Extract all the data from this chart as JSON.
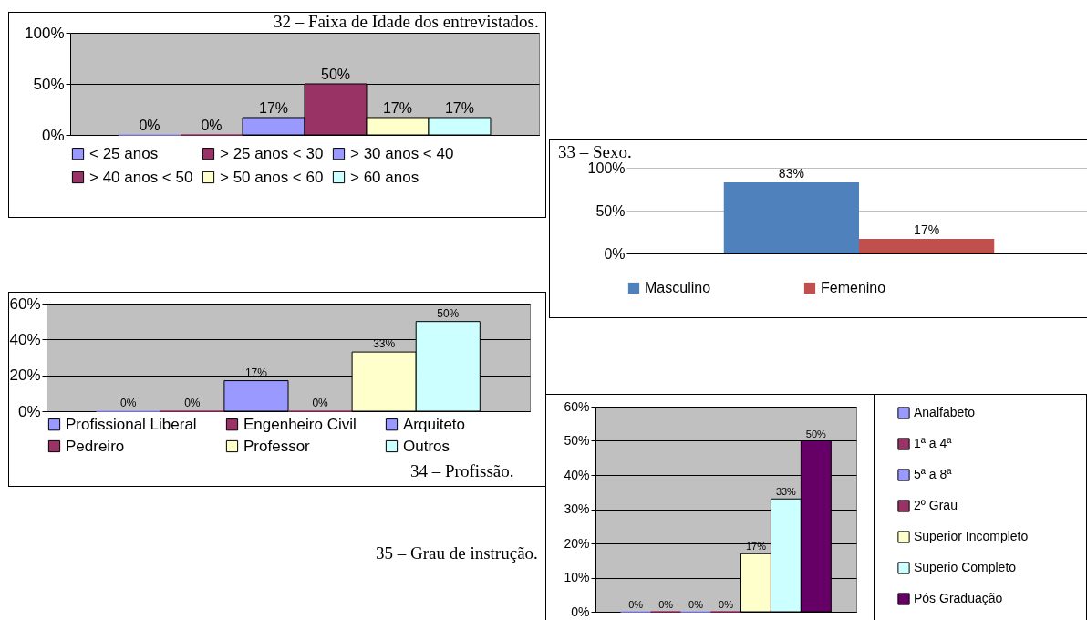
{
  "chart_data": [
    {
      "type": "bar",
      "title": "32 – Faixa de Idade dos entrevistados.",
      "categories": [
        null
      ],
      "ylim": [
        0,
        100
      ],
      "yticks": [
        {
          "value": 0,
          "label": "0%"
        },
        {
          "value": 50,
          "label": "50%"
        },
        {
          "value": 100,
          "label": "100%"
        }
      ],
      "grid": "y",
      "legend": "bottom",
      "tick_labels": "y",
      "series": [
        {
          "name": "< 25 anos",
          "color": "#9999ff",
          "values": [
            0
          ],
          "value_labels": [
            "0%"
          ]
        },
        {
          "name": "> 25 anos < 30",
          "color": "#993366",
          "values": [
            0
          ],
          "value_labels": [
            "0%"
          ]
        },
        {
          "name": "> 30 anos < 40",
          "color": "#9999ff",
          "values": [
            17
          ],
          "value_labels": [
            "17%"
          ]
        },
        {
          "name": "> 40 anos < 50",
          "color": "#993366",
          "values": [
            50
          ],
          "value_labels": [
            "50%"
          ]
        },
        {
          "name": "> 50 anos < 60",
          "color": "#ffffcc",
          "values": [
            17
          ],
          "value_labels": [
            "17%"
          ]
        },
        {
          "name": "> 60 anos",
          "color": "#ccffff",
          "values": [
            17
          ],
          "value_labels": [
            "17%"
          ]
        }
      ]
    },
    {
      "type": "bar",
      "title": "33 – Sexo.",
      "categories": [
        null
      ],
      "ylim": [
        0,
        100
      ],
      "yticks": [
        {
          "value": 0,
          "label": "0%"
        },
        {
          "value": 50,
          "label": "50%"
        },
        {
          "value": 100,
          "label": "100%"
        }
      ],
      "grid": "y",
      "legend": "bottom",
      "tick_labels": "y",
      "series": [
        {
          "name": "Masculino",
          "color": "#4f81bd",
          "values": [
            83
          ],
          "value_labels": [
            "83%"
          ]
        },
        {
          "name": "Femenino",
          "color": "#c0504d",
          "values": [
            17
          ],
          "value_labels": [
            "17%"
          ]
        }
      ]
    },
    {
      "type": "bar",
      "title": "34 – Profissão.",
      "categories": [
        null
      ],
      "ylim": [
        0,
        60
      ],
      "yticks": [
        {
          "value": 0,
          "label": "0%"
        },
        {
          "value": 20,
          "label": "20%"
        },
        {
          "value": 40,
          "label": "40%"
        },
        {
          "value": 60,
          "label": "60%"
        }
      ],
      "grid": "y",
      "legend": "bottom",
      "tick_labels": "y",
      "series": [
        {
          "name": "Profissional Liberal",
          "color": "#9999ff",
          "values": [
            0
          ],
          "value_labels": [
            "0%"
          ]
        },
        {
          "name": "Engenheiro Civil",
          "color": "#993366",
          "values": [
            0
          ],
          "value_labels": [
            "0%"
          ]
        },
        {
          "name": "Arquiteto",
          "color": "#9999ff",
          "values": [
            17
          ],
          "value_labels": [
            "17%"
          ]
        },
        {
          "name": "Pedreiro",
          "color": "#993366",
          "values": [
            0
          ],
          "value_labels": [
            "0%"
          ]
        },
        {
          "name": "Professor",
          "color": "#ffffcc",
          "values": [
            33
          ],
          "value_labels": [
            "33%"
          ]
        },
        {
          "name": "Outros",
          "color": "#ccffff",
          "values": [
            50
          ],
          "value_labels": [
            "50%"
          ]
        }
      ]
    },
    {
      "type": "bar",
      "title": "35 – Grau de instrução.",
      "categories": [
        null
      ],
      "ylim": [
        0,
        60
      ],
      "yticks": [
        {
          "value": 0,
          "label": "0%"
        },
        {
          "value": 10,
          "label": "10%"
        },
        {
          "value": 20,
          "label": "20%"
        },
        {
          "value": 30,
          "label": "30%"
        },
        {
          "value": 40,
          "label": "40%"
        },
        {
          "value": 50,
          "label": "50%"
        },
        {
          "value": 60,
          "label": "60%"
        }
      ],
      "grid": "y",
      "legend": "right",
      "tick_labels": "y",
      "series": [
        {
          "name": "Analfabeto",
          "color": "#9999ff",
          "values": [
            0
          ],
          "value_labels": [
            "0%"
          ]
        },
        {
          "name": "1ª a 4ª",
          "color": "#993366",
          "values": [
            0
          ],
          "value_labels": [
            "0%"
          ]
        },
        {
          "name": "5ª a 8ª",
          "color": "#9999ff",
          "values": [
            0
          ],
          "value_labels": [
            "0%"
          ]
        },
        {
          "name": "2º Grau",
          "color": "#993366",
          "values": [
            0
          ],
          "value_labels": [
            "0%"
          ]
        },
        {
          "name": "Superior Incompleto",
          "color": "#ffffcc",
          "values": [
            17
          ],
          "value_labels": [
            "17%"
          ]
        },
        {
          "name": "Superio Completo",
          "color": "#ccffff",
          "values": [
            33
          ],
          "value_labels": [
            "33%"
          ]
        },
        {
          "name": "Pós Graduação",
          "color": "#660066",
          "values": [
            50
          ],
          "value_labels": [
            "50%"
          ]
        }
      ]
    }
  ]
}
